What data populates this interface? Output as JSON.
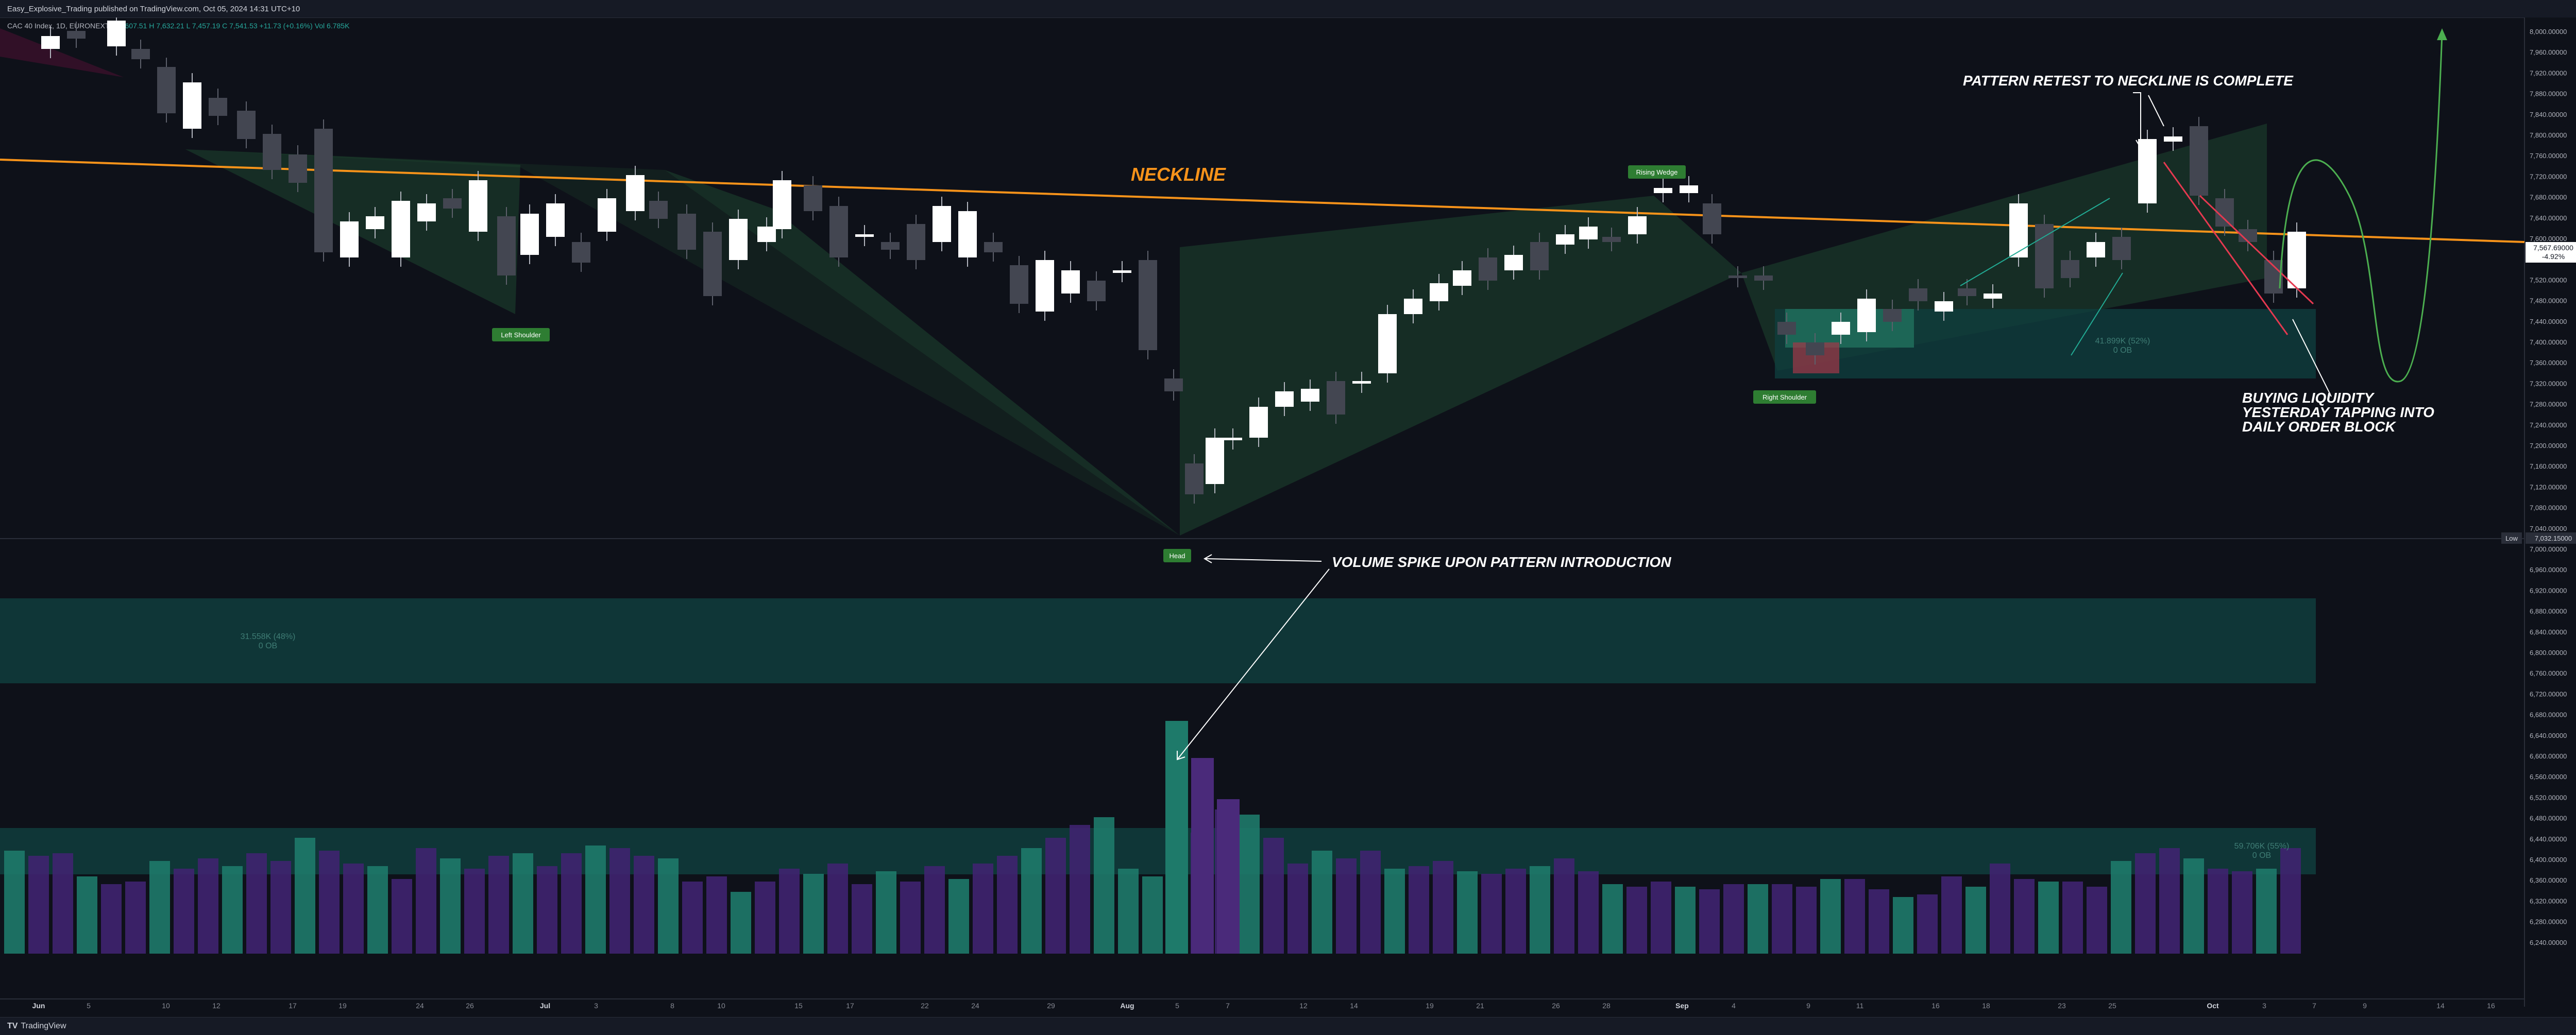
{
  "header": {
    "publisher": "Easy_Explosive_Trading published on TradingView.com, Oct 05, 2024 14:31 UTC+10",
    "symbol": "CAC 40 Index, 1D, EURONEXT",
    "ohlc": "O 7,607.51  H 7,632.21  L 7,457.19  C 7,541.53  +11.73 (+0.16%)",
    "vol": "Vol 6.785K"
  },
  "price_axis": {
    "ticks": [
      "8,000.00000",
      "7,960.00000",
      "7,920.00000",
      "7,880.00000",
      "7,840.00000",
      "7,800.00000",
      "7,760.00000",
      "7,720.00000",
      "7,680.00000",
      "7,640.00000",
      "7,600.00000",
      "7,560.00000",
      "7,520.00000",
      "7,480.00000",
      "7,440.00000",
      "7,400.00000",
      "7,360.00000",
      "7,320.00000",
      "7,280.00000",
      "7,240.00000",
      "7,200.00000",
      "7,160.00000",
      "7,120.00000",
      "7,080.00000",
      "7,040.00000",
      "7,000.00000",
      "6,960.00000",
      "6,920.00000",
      "6,880.00000",
      "6,840.00000",
      "6,800.00000",
      "6,760.00000",
      "6,720.00000",
      "6,680.00000",
      "6,640.00000",
      "6,600.00000",
      "6,560.00000",
      "6,520.00000",
      "6,480.00000",
      "6,440.00000",
      "6,400.00000",
      "6,360.00000",
      "6,320.00000",
      "6,280.00000",
      "6,240.00000"
    ],
    "last_price": "7,567.69000",
    "last_change": "-4.92%",
    "low_label": "Low",
    "low_value": "7,032.15000"
  },
  "time_axis": {
    "labels": [
      "Jun",
      "5",
      "10",
      "12",
      "17",
      "19",
      "24",
      "26",
      "Jul",
      "3",
      "8",
      "10",
      "15",
      "17",
      "22",
      "24",
      "29",
      "Aug",
      "5",
      "7",
      "12",
      "14",
      "19",
      "21",
      "26",
      "28",
      "Sep",
      "4",
      "9",
      "11",
      "16",
      "18",
      "23",
      "25",
      "Oct",
      "3",
      "7",
      "9",
      "14",
      "16"
    ]
  },
  "annotations": {
    "neckline": "NECKLINE",
    "retest": "PATTERN RETEST TO NECKLINE IS COMPLETE",
    "buying": [
      "BUYING LIQUIDITY",
      "YESTERDAY TAPPING INTO",
      "DAILY ORDER BLOCK"
    ],
    "volume_spike": "VOLUME SPIKE UPON PATTERN INTRODUCTION",
    "left_shoulder": "Left Shoulder",
    "head": "Head",
    "right_shoulder": "Right Shoulder",
    "rising_wedge": "Rising Wedge",
    "ob_upper_pct": "41.899K (52%)",
    "ob_upper_sub": "0 OB",
    "ob_mid_pct": "31.558K (48%)",
    "ob_mid_sub": "0 OB",
    "ob_lower_pct": "59.706K (55%)",
    "ob_lower_sub": "0 OB"
  },
  "footer": {
    "brand": "TradingView"
  },
  "colors": {
    "bg": "#0e1119",
    "neckline": "#f7931a",
    "volume_teal": "#1e7a6a",
    "volume_purple": "#4a2a7a",
    "ob_teal": "#0f3d3d",
    "badge_green": "#2e7d32",
    "arrow_green": "#22ab94",
    "arrow_red": "#e53950"
  }
}
